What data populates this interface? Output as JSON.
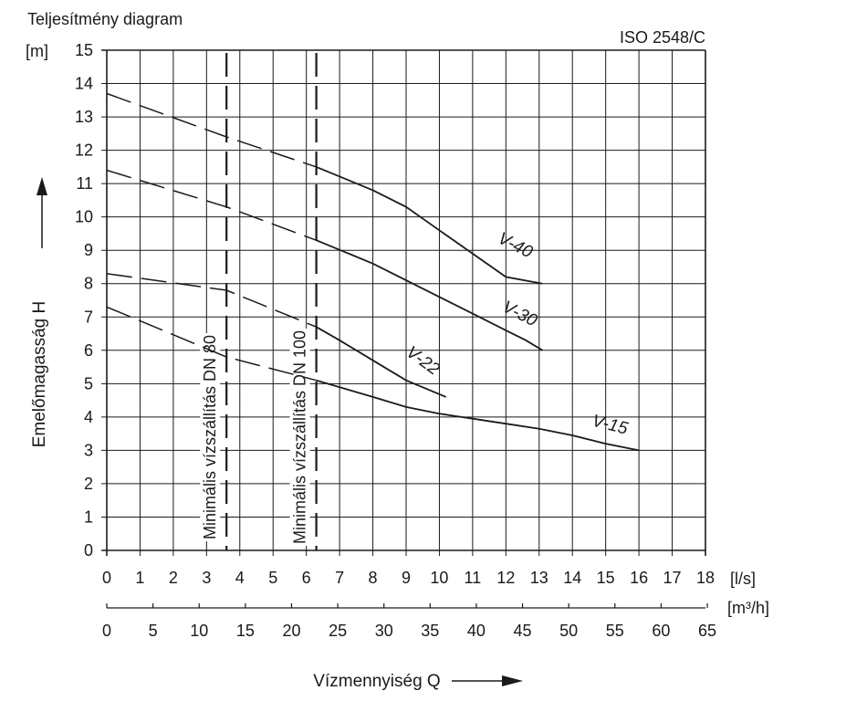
{
  "chart_data": {
    "type": "line",
    "title": "Teljesítmény diagram",
    "standard": "ISO 2548/C",
    "xlabel": "Vízmennyiség Q",
    "ylabel": "Emelőmagasság H",
    "y_unit": "[m]",
    "x_unit": "[l/s]",
    "x2_unit": "[m³/h]",
    "xlim": [
      0,
      18
    ],
    "ylim": [
      0,
      15
    ],
    "x_ticks": [
      0,
      1,
      2,
      3,
      4,
      5,
      6,
      7,
      8,
      9,
      10,
      11,
      12,
      13,
      14,
      15,
      16,
      17,
      18
    ],
    "y_ticks": [
      0,
      1,
      2,
      3,
      4,
      5,
      6,
      7,
      8,
      9,
      10,
      11,
      12,
      13,
      14,
      15
    ],
    "x2_ticks": [
      0,
      5,
      10,
      15,
      20,
      25,
      30,
      35,
      40,
      45,
      50,
      55,
      60,
      65
    ],
    "grid": true,
    "vlines": [
      {
        "x": 3.6,
        "label": "Minimális vízszállítás DN 80"
      },
      {
        "x": 6.3,
        "label": "Minimális vízszállítás DN 100"
      }
    ],
    "series": [
      {
        "name": "V-40",
        "dashed_until": 6.3,
        "points": [
          [
            0,
            13.7
          ],
          [
            3.6,
            12.4
          ],
          [
            6.3,
            11.5
          ],
          [
            8,
            10.8
          ],
          [
            9,
            10.3
          ],
          [
            10,
            9.6
          ],
          [
            11,
            8.9
          ],
          [
            12,
            8.2
          ],
          [
            13.1,
            8.0
          ]
        ]
      },
      {
        "name": "V-30",
        "dashed_until": 6.3,
        "points": [
          [
            0,
            11.4
          ],
          [
            3.6,
            10.3
          ],
          [
            6.3,
            9.3
          ],
          [
            8,
            8.6
          ],
          [
            9,
            8.1
          ],
          [
            10,
            7.6
          ],
          [
            11,
            7.1
          ],
          [
            12,
            6.6
          ],
          [
            12.6,
            6.3
          ],
          [
            13.1,
            6.0
          ]
        ]
      },
      {
        "name": "V-22",
        "dashed_until": 6.3,
        "points": [
          [
            0,
            8.3
          ],
          [
            3.6,
            7.8
          ],
          [
            6.3,
            6.7
          ],
          [
            7,
            6.3
          ],
          [
            8,
            5.7
          ],
          [
            9,
            5.1
          ],
          [
            10.2,
            4.6
          ]
        ]
      },
      {
        "name": "V-15",
        "dashed_until": 6.3,
        "points": [
          [
            0,
            7.3
          ],
          [
            3.6,
            5.8
          ],
          [
            6.3,
            5.1
          ],
          [
            8,
            4.6
          ],
          [
            9,
            4.3
          ],
          [
            10,
            4.1
          ],
          [
            11,
            3.95
          ],
          [
            12,
            3.8
          ],
          [
            13,
            3.65
          ],
          [
            14,
            3.45
          ],
          [
            15,
            3.2
          ],
          [
            16,
            3.0
          ]
        ]
      }
    ]
  }
}
